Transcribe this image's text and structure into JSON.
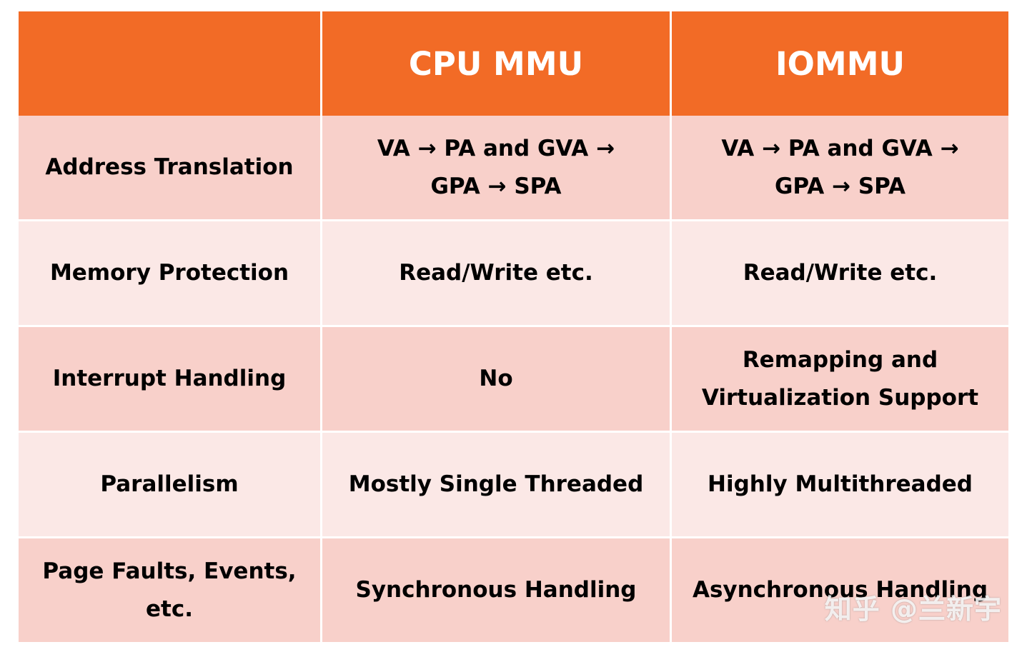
{
  "table": {
    "header": {
      "col1": "",
      "col2": "CPU MMU",
      "col3": "IOMMU"
    },
    "rows": [
      {
        "feature": "Address Translation",
        "cpu_mmu": "VA → PA and GVA → GPA → SPA",
        "iommu": "VA → PA and GVA → GPA → SPA"
      },
      {
        "feature": "Memory Protection",
        "cpu_mmu": "Read/Write etc.",
        "iommu": "Read/Write etc."
      },
      {
        "feature": "Interrupt Handling",
        "cpu_mmu": "No",
        "iommu": "Remapping and Virtualization Support"
      },
      {
        "feature": "Parallelism",
        "cpu_mmu": "Mostly Single Threaded",
        "iommu": "Highly Multithreaded"
      },
      {
        "feature": "Page Faults, Events, etc.",
        "cpu_mmu": "Synchronous Handling",
        "iommu": "Asynchronous Handling"
      }
    ]
  },
  "watermark": "知乎 @兰新宇",
  "colors": {
    "header_bg": "#f26b26",
    "row_dark_bg": "#f8d0ca",
    "row_light_bg": "#fbe8e6"
  }
}
